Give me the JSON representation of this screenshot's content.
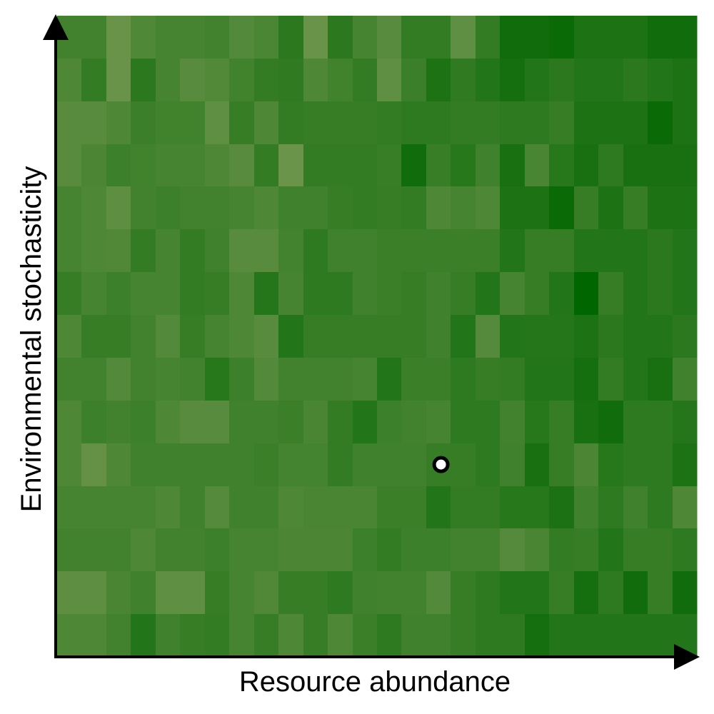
{
  "chart_data": {
    "type": "heatmap",
    "title": "",
    "xlabel": "Resource abundance",
    "ylabel": "Environmental stochasticity",
    "xlim": [
      0,
      1
    ],
    "ylim": [
      0,
      1
    ],
    "x_ticks": [],
    "y_ticks": [],
    "axes_arrows": true,
    "grid": false,
    "legend": "none",
    "n_cols": 26,
    "n_rows": 15,
    "value_range": [
      0,
      1
    ],
    "colormap": [
      "#7a9a55",
      "#006600"
    ],
    "cells": [
      [
        0.46,
        0.46,
        0.14,
        0.35,
        0.42,
        0.42,
        0.46,
        0.32,
        0.39,
        0.65,
        0.14,
        0.65,
        0.42,
        0.28,
        0.58,
        0.58,
        0.22,
        0.58,
        0.86,
        0.86,
        0.93,
        0.76,
        0.76,
        0.76,
        0.86,
        0.86
      ],
      [
        0.36,
        0.58,
        0.14,
        0.65,
        0.42,
        0.28,
        0.33,
        0.47,
        0.58,
        0.61,
        0.36,
        0.47,
        0.58,
        0.22,
        0.51,
        0.76,
        0.61,
        0.72,
        0.82,
        0.72,
        0.65,
        0.72,
        0.72,
        0.65,
        0.72,
        0.76
      ],
      [
        0.28,
        0.28,
        0.36,
        0.51,
        0.47,
        0.47,
        0.22,
        0.55,
        0.36,
        0.58,
        0.55,
        0.55,
        0.55,
        0.58,
        0.62,
        0.62,
        0.58,
        0.58,
        0.62,
        0.62,
        0.55,
        0.76,
        0.76,
        0.76,
        0.93,
        0.76
      ],
      [
        0.28,
        0.38,
        0.5,
        0.47,
        0.42,
        0.42,
        0.36,
        0.28,
        0.58,
        0.12,
        0.58,
        0.58,
        0.58,
        0.54,
        0.86,
        0.54,
        0.68,
        0.48,
        0.8,
        0.4,
        0.68,
        0.8,
        0.62,
        0.8,
        0.8,
        0.8
      ],
      [
        0.42,
        0.36,
        0.24,
        0.46,
        0.5,
        0.46,
        0.46,
        0.42,
        0.36,
        0.48,
        0.48,
        0.55,
        0.58,
        0.55,
        0.58,
        0.36,
        0.42,
        0.36,
        0.76,
        0.76,
        0.93,
        0.55,
        0.76,
        0.55,
        0.76,
        0.76
      ],
      [
        0.42,
        0.36,
        0.34,
        0.58,
        0.42,
        0.58,
        0.48,
        0.28,
        0.28,
        0.45,
        0.62,
        0.48,
        0.48,
        0.52,
        0.52,
        0.52,
        0.52,
        0.52,
        0.72,
        0.55,
        0.55,
        0.72,
        0.72,
        0.72,
        0.65,
        0.72
      ],
      [
        0.55,
        0.42,
        0.5,
        0.42,
        0.42,
        0.58,
        0.55,
        0.36,
        0.7,
        0.42,
        0.62,
        0.62,
        0.48,
        0.52,
        0.55,
        0.48,
        0.55,
        0.72,
        0.42,
        0.55,
        0.72,
        1.0,
        0.55,
        0.72,
        0.65,
        0.72
      ],
      [
        0.36,
        0.55,
        0.55,
        0.46,
        0.32,
        0.55,
        0.42,
        0.36,
        0.28,
        0.72,
        0.55,
        0.55,
        0.55,
        0.55,
        0.55,
        0.48,
        0.72,
        0.3,
        0.72,
        0.7,
        0.7,
        0.76,
        0.65,
        0.72,
        0.72,
        0.65
      ],
      [
        0.46,
        0.46,
        0.32,
        0.46,
        0.42,
        0.46,
        0.68,
        0.5,
        0.32,
        0.46,
        0.46,
        0.46,
        0.42,
        0.72,
        0.52,
        0.52,
        0.62,
        0.55,
        0.58,
        0.72,
        0.72,
        0.82,
        0.58,
        0.72,
        0.8,
        0.48
      ],
      [
        0.36,
        0.5,
        0.46,
        0.5,
        0.36,
        0.28,
        0.28,
        0.48,
        0.48,
        0.52,
        0.4,
        0.58,
        0.72,
        0.5,
        0.46,
        0.42,
        0.62,
        0.62,
        0.46,
        0.68,
        0.55,
        0.8,
        0.86,
        0.62,
        0.62,
        0.7
      ],
      [
        0.36,
        0.18,
        0.36,
        0.48,
        0.48,
        0.48,
        0.48,
        0.48,
        0.52,
        0.44,
        0.44,
        0.58,
        0.48,
        0.48,
        0.48,
        0.55,
        0.55,
        0.62,
        0.48,
        0.8,
        0.55,
        0.38,
        0.68,
        0.62,
        0.62,
        0.76
      ],
      [
        0.42,
        0.42,
        0.42,
        0.42,
        0.36,
        0.48,
        0.3,
        0.48,
        0.48,
        0.36,
        0.4,
        0.4,
        0.4,
        0.52,
        0.52,
        0.72,
        0.58,
        0.58,
        0.68,
        0.68,
        0.78,
        0.48,
        0.62,
        0.48,
        0.62,
        0.36
      ],
      [
        0.46,
        0.46,
        0.46,
        0.36,
        0.46,
        0.46,
        0.5,
        0.42,
        0.42,
        0.38,
        0.38,
        0.38,
        0.5,
        0.58,
        0.5,
        0.5,
        0.46,
        0.46,
        0.3,
        0.4,
        0.58,
        0.55,
        0.72,
        0.55,
        0.55,
        0.62
      ],
      [
        0.24,
        0.24,
        0.4,
        0.48,
        0.22,
        0.22,
        0.55,
        0.42,
        0.34,
        0.55,
        0.55,
        0.62,
        0.48,
        0.46,
        0.46,
        0.32,
        0.55,
        0.62,
        0.72,
        0.72,
        0.55,
        0.82,
        0.62,
        0.86,
        0.55,
        0.86
      ],
      [
        0.36,
        0.36,
        0.46,
        0.72,
        0.48,
        0.55,
        0.58,
        0.42,
        0.55,
        0.36,
        0.55,
        0.36,
        0.52,
        0.62,
        0.48,
        0.48,
        0.55,
        0.62,
        0.62,
        0.82,
        0.72,
        0.72,
        0.72,
        0.72,
        0.72,
        0.72
      ]
    ],
    "marker": {
      "x": 0.6,
      "y": 0.3,
      "fill": "#ffffff",
      "stroke": "#000000"
    }
  }
}
